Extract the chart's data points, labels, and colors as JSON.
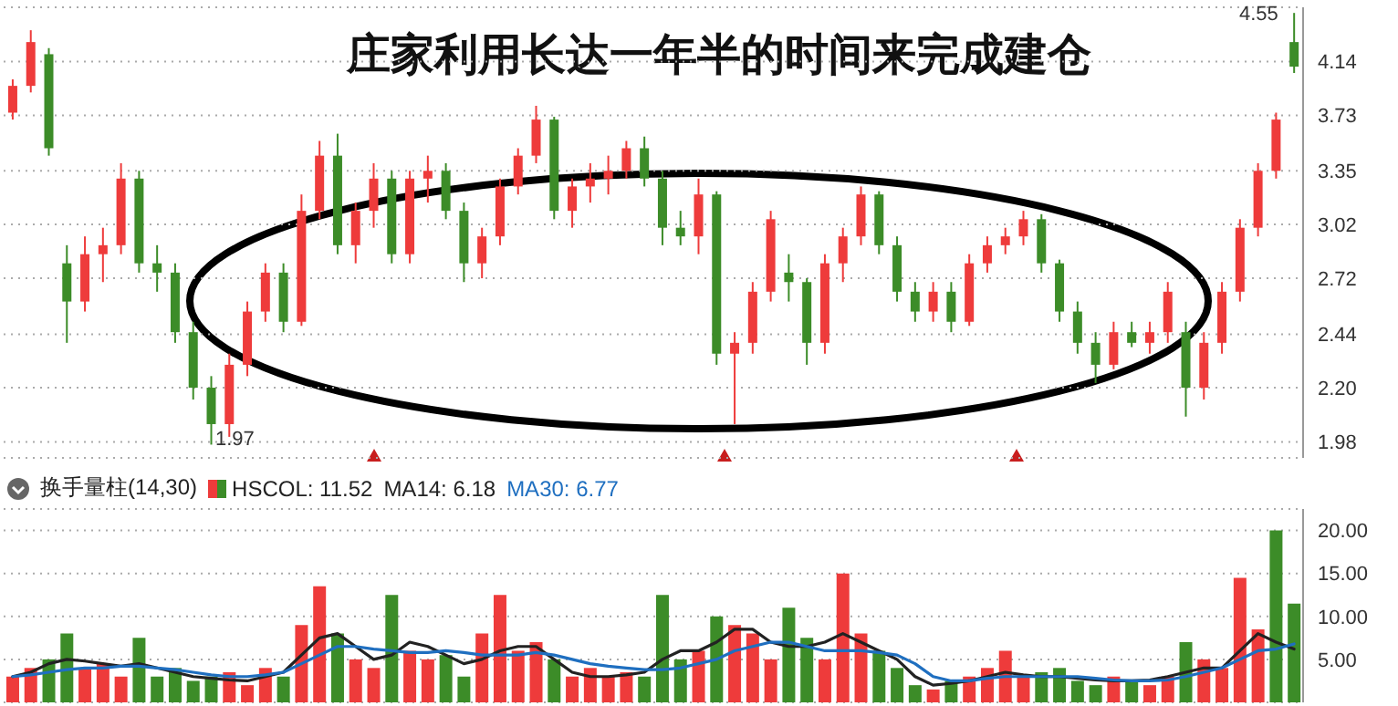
{
  "chart_data": [
    {
      "type": "candlestick",
      "title": "庄家利用长达一年半的时间来完成建仓",
      "categories": [
        null,
        null,
        null,
        null,
        null,
        null,
        null,
        null,
        null,
        null,
        null,
        null,
        null,
        null,
        null,
        null,
        null,
        null,
        null,
        null,
        null,
        null,
        null,
        null,
        null,
        null,
        null,
        null,
        null,
        null,
        null,
        null,
        null,
        null,
        null,
        null,
        null,
        null,
        null,
        null,
        null,
        null,
        null,
        null,
        null,
        null,
        null,
        null,
        null,
        null,
        null,
        null,
        null,
        null,
        null,
        null,
        null,
        null,
        null,
        null,
        null,
        null,
        null,
        null,
        null,
        null,
        null,
        null,
        null,
        null,
        null,
        null
      ],
      "ohlc": [
        [
          3.75,
          4.0,
          3.7,
          3.95
        ],
        [
          3.95,
          4.4,
          3.9,
          4.3
        ],
        [
          4.2,
          4.25,
          3.45,
          3.5
        ],
        [
          2.8,
          2.9,
          2.4,
          2.6
        ],
        [
          2.6,
          2.95,
          2.55,
          2.85
        ],
        [
          2.85,
          3.0,
          2.7,
          2.9
        ],
        [
          2.9,
          3.4,
          2.85,
          3.3
        ],
        [
          3.3,
          3.35,
          2.75,
          2.8
        ],
        [
          2.8,
          2.9,
          2.65,
          2.75
        ],
        [
          2.75,
          2.8,
          2.4,
          2.45
        ],
        [
          2.45,
          2.5,
          2.15,
          2.2
        ],
        [
          2.2,
          2.25,
          1.97,
          2.05
        ],
        [
          2.05,
          2.35,
          2.0,
          2.3
        ],
        [
          2.3,
          2.6,
          2.25,
          2.55
        ],
        [
          2.55,
          2.8,
          2.5,
          2.75
        ],
        [
          2.75,
          2.8,
          2.45,
          2.5
        ],
        [
          2.5,
          3.2,
          2.48,
          3.1
        ],
        [
          3.1,
          3.55,
          3.05,
          3.45
        ],
        [
          3.45,
          3.6,
          2.85,
          2.9
        ],
        [
          2.9,
          3.15,
          2.8,
          3.1
        ],
        [
          3.1,
          3.4,
          3.0,
          3.3
        ],
        [
          3.3,
          3.35,
          2.8,
          2.85
        ],
        [
          2.85,
          3.35,
          2.8,
          3.3
        ],
        [
          3.3,
          3.45,
          3.15,
          3.35
        ],
        [
          3.35,
          3.4,
          3.05,
          3.1
        ],
        [
          3.1,
          3.15,
          2.7,
          2.8
        ],
        [
          2.8,
          3.0,
          2.72,
          2.95
        ],
        [
          2.95,
          3.3,
          2.9,
          3.25
        ],
        [
          3.25,
          3.5,
          3.2,
          3.45
        ],
        [
          3.45,
          3.8,
          3.4,
          3.7
        ],
        [
          3.7,
          3.72,
          3.05,
          3.1
        ],
        [
          3.1,
          3.3,
          3.0,
          3.25
        ],
        [
          3.25,
          3.4,
          3.15,
          3.3
        ],
        [
          3.3,
          3.45,
          3.2,
          3.35
        ],
        [
          3.35,
          3.55,
          3.3,
          3.5
        ],
        [
          3.5,
          3.58,
          3.25,
          3.3
        ],
        [
          3.3,
          3.35,
          2.9,
          3.0
        ],
        [
          3.0,
          3.1,
          2.9,
          2.95
        ],
        [
          2.95,
          3.3,
          2.85,
          3.2
        ],
        [
          3.2,
          3.22,
          2.3,
          2.35
        ],
        [
          2.35,
          2.45,
          2.05,
          2.4
        ],
        [
          2.4,
          2.7,
          2.35,
          2.65
        ],
        [
          2.65,
          3.1,
          2.6,
          3.05
        ],
        [
          2.75,
          2.85,
          2.6,
          2.7
        ],
        [
          2.7,
          2.72,
          2.3,
          2.4
        ],
        [
          2.4,
          2.85,
          2.35,
          2.8
        ],
        [
          2.8,
          3.0,
          2.7,
          2.95
        ],
        [
          2.95,
          3.25,
          2.9,
          3.2
        ],
        [
          3.2,
          3.22,
          2.85,
          2.9
        ],
        [
          2.9,
          2.95,
          2.6,
          2.65
        ],
        [
          2.65,
          2.7,
          2.5,
          2.55
        ],
        [
          2.55,
          2.7,
          2.5,
          2.65
        ],
        [
          2.65,
          2.7,
          2.45,
          2.5
        ],
        [
          2.5,
          2.85,
          2.48,
          2.8
        ],
        [
          2.8,
          2.95,
          2.75,
          2.9
        ],
        [
          2.9,
          3.0,
          2.85,
          2.95
        ],
        [
          2.95,
          3.1,
          2.9,
          3.05
        ],
        [
          3.05,
          3.08,
          2.75,
          2.8
        ],
        [
          2.8,
          2.82,
          2.5,
          2.55
        ],
        [
          2.55,
          2.6,
          2.35,
          2.4
        ],
        [
          2.4,
          2.45,
          2.22,
          2.3
        ],
        [
          2.3,
          2.5,
          2.28,
          2.45
        ],
        [
          2.45,
          2.5,
          2.38,
          2.4
        ],
        [
          2.4,
          2.5,
          2.35,
          2.45
        ],
        [
          2.45,
          2.7,
          2.4,
          2.65
        ],
        [
          2.45,
          2.5,
          2.08,
          2.2
        ],
        [
          2.2,
          2.45,
          2.15,
          2.4
        ],
        [
          2.4,
          2.7,
          2.35,
          2.65
        ],
        [
          2.65,
          3.05,
          2.6,
          3.0
        ],
        [
          3.0,
          3.4,
          2.95,
          3.35
        ],
        [
          3.35,
          3.75,
          3.3,
          3.7
        ],
        [
          4.3,
          4.55,
          4.05,
          4.1
        ]
      ],
      "colors": [
        "#ee3b3b",
        "#ee3b3b",
        "#3c8c28",
        "#3c8c28",
        "#ee3b3b",
        "#ee3b3b",
        "#ee3b3b",
        "#3c8c28",
        "#3c8c28",
        "#3c8c28",
        "#3c8c28",
        "#3c8c28",
        "#ee3b3b",
        "#ee3b3b",
        "#ee3b3b",
        "#3c8c28",
        "#ee3b3b",
        "#ee3b3b",
        "#3c8c28",
        "#ee3b3b",
        "#ee3b3b",
        "#3c8c28",
        "#ee3b3b",
        "#ee3b3b",
        "#3c8c28",
        "#3c8c28",
        "#ee3b3b",
        "#ee3b3b",
        "#ee3b3b",
        "#ee3b3b",
        "#3c8c28",
        "#ee3b3b",
        "#ee3b3b",
        "#ee3b3b",
        "#ee3b3b",
        "#3c8c28",
        "#3c8c28",
        "#3c8c28",
        "#ee3b3b",
        "#3c8c28",
        "#ee3b3b",
        "#ee3b3b",
        "#ee3b3b",
        "#3c8c28",
        "#3c8c28",
        "#ee3b3b",
        "#ee3b3b",
        "#ee3b3b",
        "#3c8c28",
        "#3c8c28",
        "#3c8c28",
        "#ee3b3b",
        "#3c8c28",
        "#ee3b3b",
        "#ee3b3b",
        "#ee3b3b",
        "#ee3b3b",
        "#3c8c28",
        "#3c8c28",
        "#3c8c28",
        "#3c8c28",
        "#ee3b3b",
        "#3c8c28",
        "#ee3b3b",
        "#ee3b3b",
        "#3c8c28",
        "#ee3b3b",
        "#ee3b3b",
        "#ee3b3b",
        "#ee3b3b",
        "#ee3b3b",
        "#3c8c28"
      ],
      "ylim": [
        1.92,
        4.6
      ],
      "log": true,
      "yticks": [
        {
          "value": 1.98,
          "label": "1.98"
        },
        {
          "value": 2.2,
          "label": "2.20"
        },
        {
          "value": 2.44,
          "label": "2.44"
        },
        {
          "value": 2.72,
          "label": "2.72"
        },
        {
          "value": 3.02,
          "label": "3.02"
        },
        {
          "value": 3.35,
          "label": "3.35"
        },
        {
          "value": 3.73,
          "label": "3.73"
        },
        {
          "value": 4.14,
          "label": "4.14"
        }
      ],
      "grid": "y",
      "tick_labels": "y",
      "annotations": [
        "4.55",
        "1.97"
      ]
    },
    {
      "type": "bar",
      "title": "换手量柱(14,30)",
      "categories": [
        null,
        null,
        null,
        null,
        null,
        null,
        null,
        null,
        null,
        null,
        null,
        null,
        null,
        null,
        null,
        null,
        null,
        null,
        null,
        null,
        null,
        null,
        null,
        null,
        null,
        null,
        null,
        null,
        null,
        null,
        null,
        null,
        null,
        null,
        null,
        null,
        null,
        null,
        null,
        null,
        null,
        null,
        null,
        null,
        null,
        null,
        null,
        null,
        null,
        null,
        null,
        null,
        null,
        null,
        null,
        null,
        null,
        null,
        null,
        null,
        null,
        null,
        null,
        null,
        null,
        null,
        null,
        null,
        null,
        null,
        null,
        null
      ],
      "series": [
        {
          "name": "HSCOL: 11.52",
          "type": "bar",
          "values": [
            3,
            4,
            5,
            8,
            4,
            4.5,
            3,
            7.5,
            3,
            4,
            2.5,
            3,
            3.5,
            2,
            4,
            3,
            9,
            13.5,
            8,
            5,
            4,
            12.5,
            6,
            5,
            5.5,
            3,
            8,
            12.5,
            6,
            7,
            5,
            3,
            4,
            3,
            3.5,
            3,
            12.5,
            5,
            6,
            10,
            9,
            8,
            5,
            11,
            7.5,
            5,
            15,
            8,
            6,
            4,
            2,
            1.5,
            2.5,
            3,
            4,
            6,
            3,
            3.5,
            4,
            2.5,
            2,
            3,
            2.5,
            2,
            3,
            7,
            5,
            4,
            14.5,
            8.5,
            20,
            11.5
          ],
          "colors": [
            "#ee3b3b",
            "#ee3b3b",
            "#3c8c28",
            "#3c8c28",
            "#ee3b3b",
            "#ee3b3b",
            "#ee3b3b",
            "#3c8c28",
            "#3c8c28",
            "#3c8c28",
            "#3c8c28",
            "#3c8c28",
            "#ee3b3b",
            "#ee3b3b",
            "#ee3b3b",
            "#3c8c28",
            "#ee3b3b",
            "#ee3b3b",
            "#3c8c28",
            "#ee3b3b",
            "#ee3b3b",
            "#3c8c28",
            "#ee3b3b",
            "#ee3b3b",
            "#3c8c28",
            "#3c8c28",
            "#ee3b3b",
            "#ee3b3b",
            "#ee3b3b",
            "#ee3b3b",
            "#3c8c28",
            "#ee3b3b",
            "#ee3b3b",
            "#ee3b3b",
            "#ee3b3b",
            "#3c8c28",
            "#3c8c28",
            "#3c8c28",
            "#ee3b3b",
            "#3c8c28",
            "#ee3b3b",
            "#ee3b3b",
            "#ee3b3b",
            "#3c8c28",
            "#3c8c28",
            "#ee3b3b",
            "#ee3b3b",
            "#ee3b3b",
            "#3c8c28",
            "#3c8c28",
            "#3c8c28",
            "#ee3b3b",
            "#3c8c28",
            "#ee3b3b",
            "#ee3b3b",
            "#ee3b3b",
            "#ee3b3b",
            "#3c8c28",
            "#3c8c28",
            "#3c8c28",
            "#3c8c28",
            "#ee3b3b",
            "#3c8c28",
            "#ee3b3b",
            "#ee3b3b",
            "#3c8c28",
            "#ee3b3b",
            "#ee3b3b",
            "#ee3b3b",
            "#ee3b3b",
            "#3c8c28",
            "#3c8c28"
          ]
        },
        {
          "name": "MA14: 6.18",
          "type": "line",
          "color": "#222222",
          "values": [
            3,
            3.5,
            4.5,
            5,
            4.8,
            4.5,
            4.2,
            4.5,
            4,
            3.5,
            3,
            2.8,
            2.6,
            2.5,
            3,
            3.5,
            5.5,
            7.5,
            8,
            6.5,
            5,
            5.5,
            7,
            6.5,
            5.5,
            4.5,
            5,
            6,
            6.5,
            6.5,
            5,
            3.5,
            3,
            3,
            3.2,
            3.5,
            5,
            6,
            6,
            7,
            8.5,
            8.5,
            7,
            6.5,
            6.5,
            7,
            8,
            7,
            6,
            5,
            3,
            2,
            2.2,
            2.5,
            3,
            3.5,
            3.2,
            3,
            3,
            2.8,
            2.6,
            2.5,
            2.5,
            2.6,
            3,
            3.5,
            4,
            4,
            6,
            8,
            7,
            6.2
          ]
        },
        {
          "name": "MA30: 6.77",
          "type": "line",
          "color": "#1f6fc0",
          "values": [
            3,
            3.2,
            3.5,
            3.8,
            4,
            4,
            4.2,
            4.2,
            4,
            3.8,
            3.5,
            3.2,
            3,
            3,
            3.2,
            3.5,
            4.5,
            5.5,
            6.5,
            6.5,
            6.2,
            6,
            5.8,
            5.8,
            6,
            5.8,
            5.5,
            5.5,
            5.5,
            5.8,
            5.5,
            5,
            4.5,
            4.2,
            4,
            3.8,
            3.8,
            4,
            4.5,
            5,
            6,
            6.5,
            7,
            7,
            6.5,
            6,
            6,
            6,
            5.8,
            5.5,
            4.5,
            3,
            2.5,
            2.5,
            2.8,
            3,
            3,
            3,
            3,
            3,
            2.8,
            2.6,
            2.5,
            2.5,
            2.6,
            3,
            3.5,
            4,
            5,
            6,
            6.2,
            6.8
          ]
        }
      ],
      "ylim": [
        0,
        22.5
      ],
      "yticks": [
        {
          "value": 5,
          "label": "5.00"
        },
        {
          "value": 10,
          "label": "10.00"
        },
        {
          "value": 15,
          "label": "15.00"
        },
        {
          "value": 20,
          "label": "20.00"
        }
      ],
      "grid": "y",
      "tick_labels": "y",
      "legend": "top left",
      "marker": "none"
    }
  ]
}
